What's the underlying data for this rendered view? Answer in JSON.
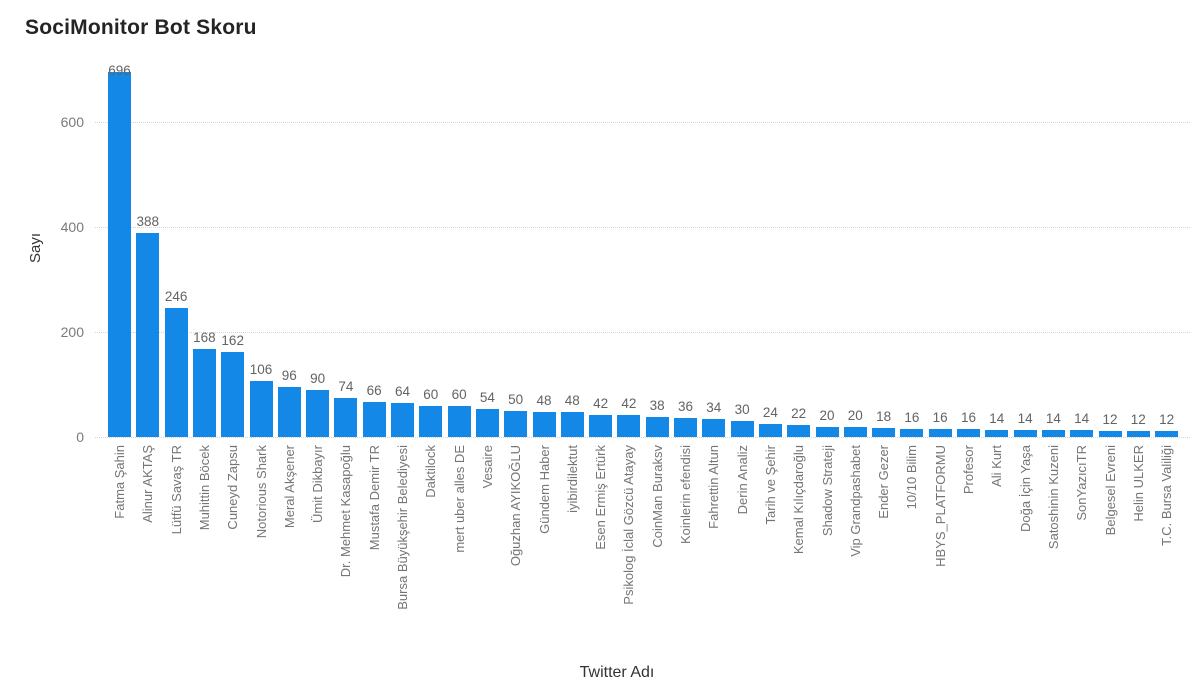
{
  "page": {
    "background": "#ffffff"
  },
  "chart_data": {
    "type": "bar",
    "title": "SociMonitor Bot Skoru",
    "xlabel": "Twitter Adı",
    "ylabel": "Sayı",
    "ylim": [
      0,
      700
    ],
    "yticks": [
      0,
      200,
      400,
      600
    ],
    "grid": "horizontal-dotted",
    "legend": "none",
    "bar_color": "#1488e6",
    "value_label_color": "#636363",
    "category_label_color": "#757575",
    "tick_label_color": "#7a7a7a",
    "title_color": "#252423",
    "categories": [
      "Fatma Şahin",
      "Alinur AKTAŞ",
      "Lütfü Savaş TR",
      "Muhittin Böcek",
      "Cuneyd Zapsu",
      "Notorious Shark",
      "Meral Akşener",
      "Ümit Dikbayır",
      "Dr. Mehmet Kasapoğlu",
      "Mustafa Demir TR",
      "Bursa Büyükşehir Belediyesi",
      "Daktilock",
      "mert uber alles DE",
      "Vesaire",
      "Oğuzhan AYIKOĞLU",
      "Gündem Haber",
      "iyibirdilektut",
      "Esen Ermiş Ertürk",
      "Psikolog İclal Gözcü Atayay",
      "CoinMan Buraksv",
      "Koinlerin efendisi",
      "Fahrettin Altun",
      "Derin Analiz",
      "Tarih ve Şehir",
      "Kemal Kılıçdaroğlu",
      "Shadow Strateji",
      "Vip Grandpashabet",
      "Ender Gezer",
      "10/10 Bilim",
      "HBYS_PLATFORMU",
      "Profesor",
      "Ali Kurt",
      "Doğa İçin Yaşa",
      "Satoshinin Kuzeni",
      "SonYazıcıTR",
      "Belgesel Evreni",
      "Helin ULKER",
      "T.C. Bursa Valiliği"
    ],
    "values": [
      696,
      388,
      246,
      168,
      162,
      106,
      96,
      90,
      74,
      66,
      64,
      60,
      60,
      54,
      50,
      48,
      48,
      42,
      42,
      38,
      36,
      34,
      30,
      24,
      22,
      20,
      20,
      18,
      16,
      16,
      16,
      14,
      14,
      14,
      14,
      12,
      12,
      12
    ]
  }
}
